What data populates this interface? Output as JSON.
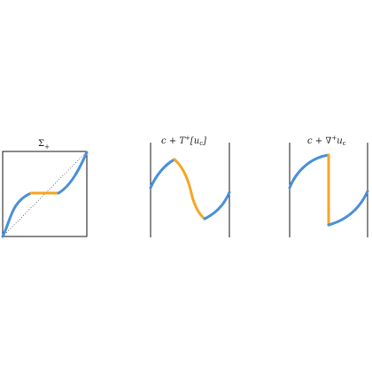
{
  "colors": {
    "blue": "#4a90d9",
    "orange": "#f5a623",
    "frame": "#111111",
    "dotted": "#555555"
  },
  "panel1": {
    "title_symbol": "Σ",
    "title_subscript": "+"
  },
  "panel2": {
    "title_prefix": "c + T",
    "title_superscript": "+",
    "title_suffix": "[u",
    "title_suffix_sub": "c",
    "title_close": "]"
  },
  "panel3": {
    "title_prefix": "c + ∇",
    "title_superscript": "+",
    "title_suffix": "u",
    "title_suffix_sub": "c"
  }
}
